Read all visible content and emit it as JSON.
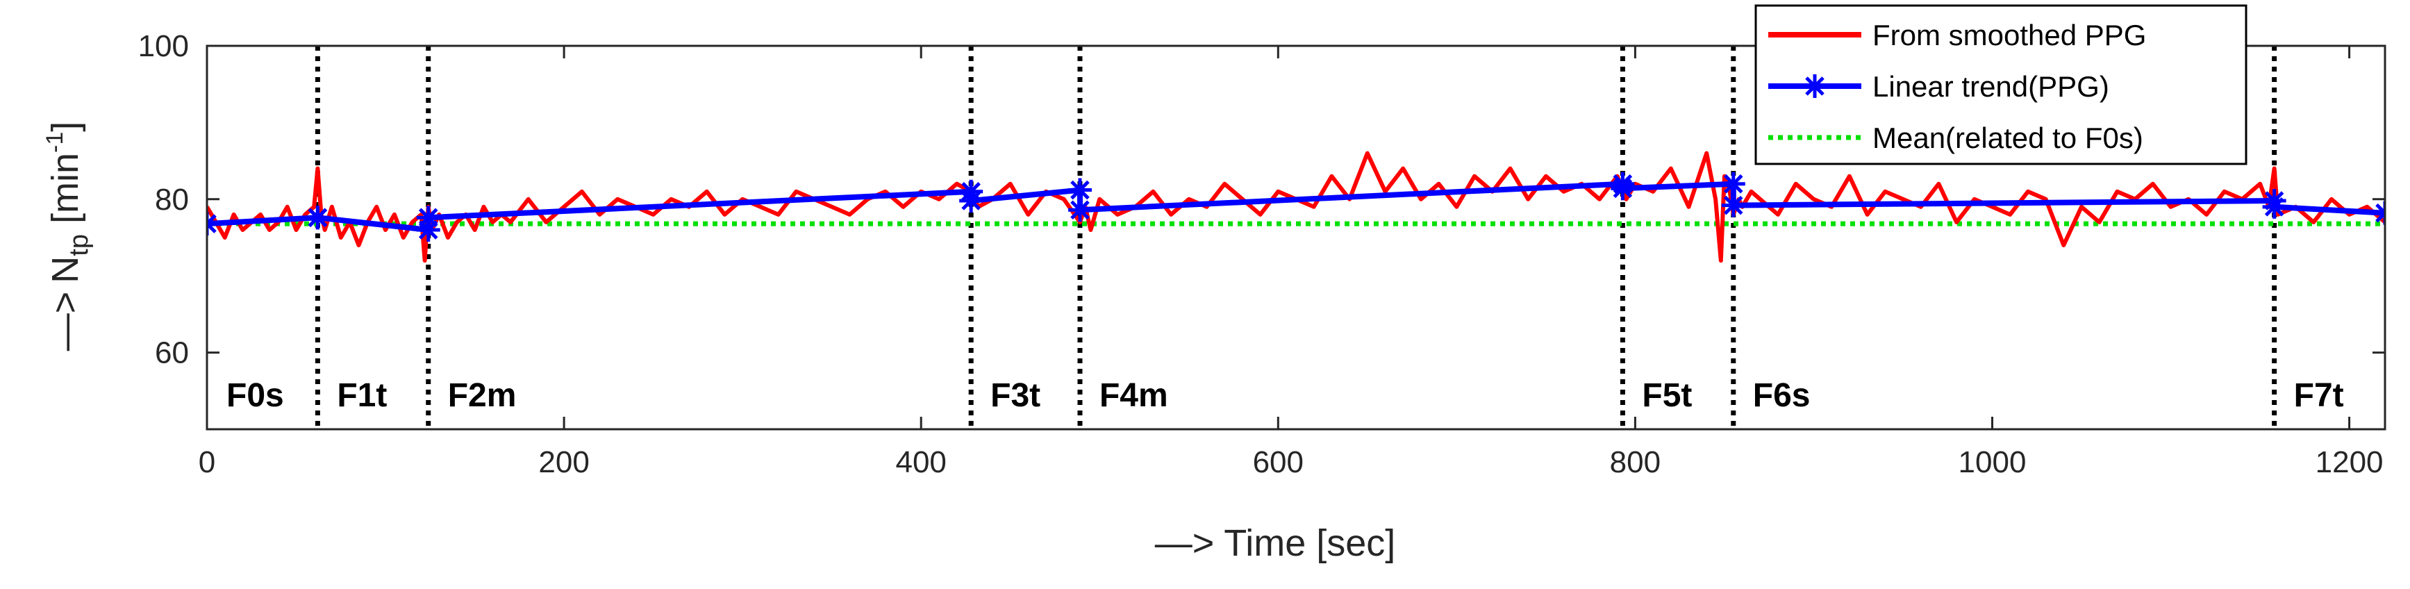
{
  "chart_data": {
    "type": "line",
    "xlabel": "Time [sec]",
    "ylabel": {
      "arrow": "—>",
      "base": "N",
      "sub": "tp",
      "unit_open": " [min",
      "sup": "-1",
      "unit_close": "]"
    },
    "xlabel_arrow": "—>",
    "xlim": [
      0,
      1220
    ],
    "ylim": [
      50,
      100
    ],
    "xticks": [
      0,
      200,
      400,
      600,
      800,
      1000,
      1200
    ],
    "yticks": [
      60,
      80,
      100
    ],
    "grid": false,
    "legend_position": "top-right",
    "phases": [
      {
        "label": "F0s",
        "start": 0,
        "boundary": null
      },
      {
        "label": "F1t",
        "start": 62,
        "boundary": 62
      },
      {
        "label": "F2m",
        "start": 124,
        "boundary": 124
      },
      {
        "label": "F3t",
        "start": 428,
        "boundary": 428
      },
      {
        "label": "F4m",
        "start": 489,
        "boundary": 489
      },
      {
        "label": "F5t",
        "start": 793,
        "boundary": 793
      },
      {
        "label": "F6s",
        "start": 855,
        "boundary": 855
      },
      {
        "label": "F7t",
        "start": 1158,
        "boundary": 1158
      }
    ],
    "series": [
      {
        "name": "From smoothed PPG",
        "color": "#ff0000",
        "style": "solid",
        "x": [
          0,
          5,
          10,
          15,
          20,
          25,
          30,
          35,
          40,
          45,
          50,
          55,
          60,
          62,
          64,
          66,
          70,
          75,
          80,
          85,
          90,
          95,
          100,
          105,
          110,
          115,
          120,
          122,
          124,
          126,
          130,
          135,
          140,
          145,
          150,
          155,
          160,
          165,
          170,
          180,
          190,
          200,
          210,
          220,
          230,
          240,
          250,
          260,
          270,
          280,
          290,
          300,
          310,
          320,
          330,
          340,
          350,
          360,
          370,
          380,
          390,
          400,
          410,
          420,
          428,
          432,
          440,
          450,
          460,
          470,
          480,
          489,
          492,
          495,
          500,
          510,
          520,
          530,
          540,
          550,
          560,
          570,
          580,
          590,
          600,
          610,
          620,
          630,
          640,
          650,
          660,
          670,
          680,
          690,
          700,
          710,
          720,
          730,
          740,
          750,
          760,
          770,
          780,
          790,
          795,
          800,
          810,
          820,
          830,
          840,
          845,
          848,
          850,
          853,
          855,
          858,
          860,
          865,
          870,
          880,
          890,
          900,
          910,
          920,
          930,
          940,
          950,
          960,
          970,
          980,
          990,
          1000,
          1010,
          1020,
          1030,
          1040,
          1050,
          1060,
          1070,
          1080,
          1090,
          1100,
          1110,
          1120,
          1130,
          1140,
          1150,
          1155,
          1158,
          1160,
          1170,
          1180,
          1190,
          1200,
          1210,
          1220
        ],
        "values": [
          79,
          77,
          75,
          78,
          76,
          77,
          78,
          76,
          77,
          79,
          76,
          78,
          79,
          84,
          78,
          76,
          79,
          75,
          77,
          74,
          77,
          79,
          76,
          78,
          75,
          77,
          78,
          72,
          79,
          76,
          78,
          75,
          77,
          78,
          76,
          79,
          77,
          78,
          77,
          80,
          77,
          79,
          81,
          78,
          80,
          79,
          78,
          80,
          79,
          81,
          78,
          80,
          79,
          78,
          81,
          80,
          79,
          78,
          80,
          81,
          79,
          81,
          80,
          82,
          81,
          79,
          80,
          82,
          78,
          81,
          80,
          77,
          79,
          76,
          80,
          78,
          79,
          81,
          78,
          80,
          79,
          82,
          80,
          78,
          81,
          80,
          79,
          83,
          80,
          86,
          81,
          84,
          80,
          82,
          79,
          83,
          81,
          84,
          80,
          83,
          81,
          82,
          80,
          83,
          80,
          82,
          81,
          84,
          79,
          86,
          80,
          72,
          83,
          81,
          78,
          80,
          79,
          81,
          80,
          78,
          82,
          80,
          79,
          83,
          78,
          81,
          80,
          79,
          82,
          77,
          80,
          79,
          78,
          81,
          80,
          74,
          79,
          77,
          81,
          80,
          82,
          79,
          80,
          78,
          81,
          80,
          82,
          79,
          84,
          78,
          79,
          77,
          80,
          78,
          79,
          77
        ],
        "markers": false
      },
      {
        "name": "Linear trend(PPG)",
        "color": "#0000ff",
        "style": "solid",
        "x": [
          0,
          62,
          62,
          124,
          124,
          428,
          428,
          489,
          489,
          793,
          793,
          855,
          855,
          1158,
          1158,
          1220
        ],
        "values": [
          76.8,
          77.6,
          77.6,
          76.0,
          77.6,
          81.0,
          79.8,
          81.2,
          78.6,
          82.0,
          81.4,
          82.0,
          79.2,
          79.8,
          79.0,
          78.2
        ],
        "markers": true
      },
      {
        "name": "Mean(related to F0s)",
        "color": "#00e000",
        "style": "dotted",
        "x": [
          0,
          1220
        ],
        "values": [
          76.8,
          76.8
        ],
        "markers": false
      }
    ]
  }
}
